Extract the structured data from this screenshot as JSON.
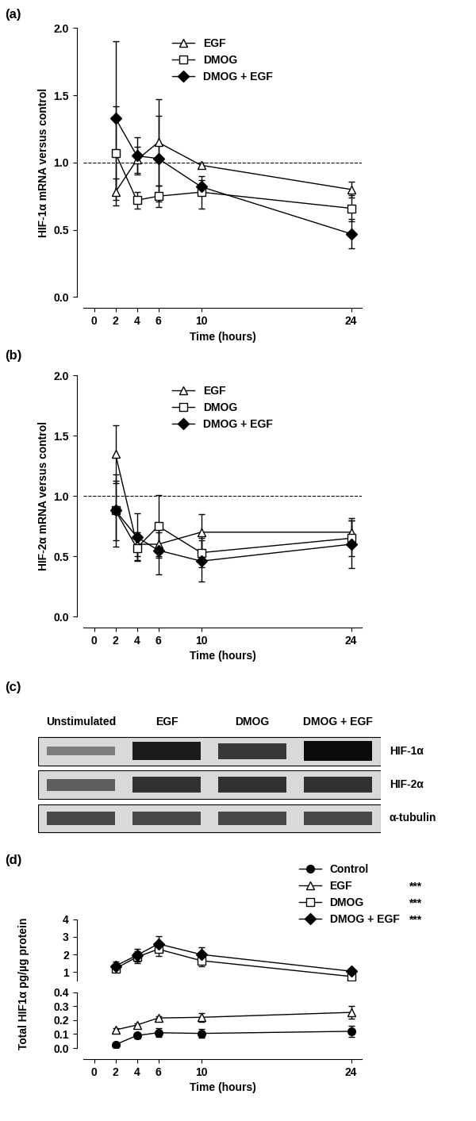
{
  "chart_data": [
    {
      "type": "line",
      "title": "(a)",
      "x_label": "Time (hours)",
      "y_label": "HIF-1α mRNA versus control",
      "x": [
        2,
        4,
        6,
        10,
        24
      ],
      "xlim": [
        -1,
        25
      ],
      "xticks": [
        0,
        2,
        4,
        6,
        10,
        24
      ],
      "ylim": [
        0,
        2
      ],
      "yticks": [
        {
          "value": 0,
          "label": "0.0"
        },
        0.5,
        {
          "value": 1,
          "label": "1.0"
        },
        1.5,
        {
          "value": 2,
          "label": "2.0"
        }
      ],
      "reference_line": 1.0,
      "legend": "upper center",
      "series": [
        {
          "name": "EGF",
          "color": "#000000",
          "marker": "open_triangle",
          "values": [
            0.78,
            1.02,
            1.15,
            0.98,
            0.8
          ],
          "errors": [
            0.1,
            0.1,
            0.32,
            0.02,
            0.06
          ]
        },
        {
          "name": "DMOG",
          "color": "#000000",
          "marker": "open_square",
          "values": [
            1.07,
            0.72,
            0.75,
            0.78,
            0.66
          ],
          "errors": [
            0.35,
            0.06,
            0.08,
            0.12,
            0.1
          ]
        },
        {
          "name": "DMOG + EGF",
          "color": "#000000",
          "marker": "diamond",
          "values": [
            1.33,
            1.05,
            1.03,
            0.82,
            0.47
          ],
          "errors": [
            0.57,
            0.14,
            0.32,
            0.05,
            0.11
          ]
        }
      ]
    },
    {
      "type": "line",
      "title": "(b)",
      "x_label": "Time (hours)",
      "y_label": "HIF-2α mRNA versus control",
      "x": [
        2,
        4,
        6,
        10,
        24
      ],
      "xlim": [
        -1,
        25
      ],
      "xticks": [
        0,
        2,
        4,
        6,
        10,
        24
      ],
      "ylim": [
        0,
        2
      ],
      "yticks": [
        {
          "value": 0,
          "label": "0.0"
        },
        0.5,
        {
          "value": 1,
          "label": "1.0"
        },
        1.5,
        {
          "value": 2,
          "label": "2.0"
        }
      ],
      "reference_line": 1.0,
      "legend": "upper center",
      "series": [
        {
          "name": "EGF",
          "color": "#000000",
          "marker": "open_triangle",
          "values": [
            1.35,
            0.6,
            0.6,
            0.7,
            0.7
          ],
          "errors": [
            0.24,
            0.1,
            0.1,
            0.15,
            0.12
          ]
        },
        {
          "name": "DMOG",
          "color": "#000000",
          "marker": "open_square",
          "values": [
            0.88,
            0.57,
            0.75,
            0.53,
            0.65
          ],
          "errors": [
            0.25,
            0.1,
            0.26,
            0.12,
            0.15
          ]
        },
        {
          "name": "DMOG + EGF",
          "color": "#000000",
          "marker": "diamond",
          "values": [
            0.88,
            0.66,
            0.55,
            0.46,
            0.6
          ],
          "errors": [
            0.3,
            0.2,
            0.2,
            0.17,
            0.2
          ]
        }
      ]
    },
    {
      "type": "blot",
      "title": "(c)",
      "lanes": [
        "Unstimulated",
        "EGF",
        "DMOG",
        "DMOG + EGF"
      ],
      "bands": [
        {
          "name": "HIF-1α",
          "intensity": [
            0.25,
            0.9,
            0.7,
            1.0
          ]
        },
        {
          "name": "HIF-2α",
          "intensity": [
            0.45,
            0.75,
            0.75,
            0.75
          ]
        },
        {
          "name": "α-tubulin",
          "intensity": [
            0.6,
            0.6,
            0.6,
            0.6
          ]
        }
      ]
    },
    {
      "type": "line",
      "title": "(d)",
      "x_label": "Time (hours)",
      "y_label": "Total HIF1α pg/µg protein",
      "x": [
        2,
        4,
        6,
        10,
        24
      ],
      "xlim": [
        -1,
        25
      ],
      "xticks": [
        0,
        2,
        4,
        6,
        10,
        24
      ],
      "y_segments": [
        {
          "ylim": [
            0,
            0.4
          ],
          "yticks": [
            {
              "value": 0,
              "label": "0.0"
            },
            0.1,
            0.2,
            0.3,
            0.4
          ]
        },
        {
          "ylim": [
            0.5,
            4
          ],
          "yticks": [
            1,
            2,
            3,
            4
          ]
        }
      ],
      "legend": "upper right",
      "series": [
        {
          "name": "Control",
          "color": "#000000",
          "marker": "circle",
          "values": [
            0.025,
            0.09,
            0.11,
            0.105,
            0.12
          ],
          "errors": [
            0.005,
            0.02,
            0.03,
            0.03,
            0.04
          ]
        },
        {
          "name": "EGF",
          "color": "#000000",
          "marker": "open_triangle",
          "values": [
            0.13,
            0.165,
            0.215,
            0.22,
            0.255
          ],
          "errors": [
            0.01,
            0.01,
            0.01,
            0.03,
            0.045
          ],
          "significance": "***"
        },
        {
          "name": "DMOG",
          "color": "#000000",
          "marker": "open_square",
          "values": [
            1.2,
            1.85,
            2.3,
            1.65,
            0.75
          ],
          "errors": [
            0.2,
            0.35,
            0.4,
            0.3,
            0.1
          ],
          "significance": "***"
        },
        {
          "name": "DMOG + EGF",
          "color": "#000000",
          "marker": "diamond",
          "values": [
            1.35,
            1.95,
            2.6,
            2.0,
            1.05
          ],
          "errors": [
            0.25,
            0.35,
            0.45,
            0.4,
            0.1
          ],
          "significance": "***"
        }
      ]
    }
  ]
}
